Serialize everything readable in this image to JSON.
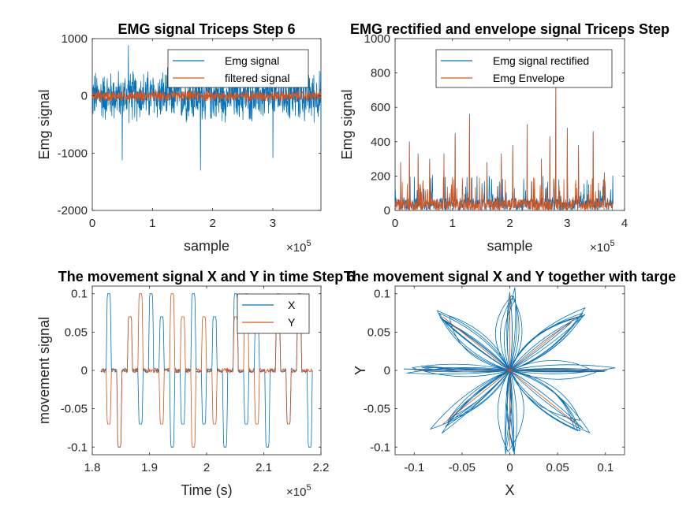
{
  "colors": {
    "blue": "#0072BD",
    "orange": "#D95319",
    "axis": "#262626"
  },
  "chart_data": [
    {
      "type": "line",
      "title": "EMG signal Triceps Step 6",
      "xlabel": "sample",
      "ylabel": "Emg signal",
      "x_exponent_label": "×10",
      "x_exponent": "5",
      "xlim": [
        0,
        380000
      ],
      "ylim": [
        -2000,
        1000
      ],
      "xticks": [
        0,
        1,
        2,
        3
      ],
      "yticks": [
        -2000,
        -1000,
        0,
        1000
      ],
      "legend_position": "top-right",
      "series": [
        {
          "name": "Emg signal",
          "color": "blue",
          "kind": "noise",
          "x_end": 380000,
          "amplitude": 400,
          "spikes": [
            [
              50000,
              -1120
            ],
            [
              60000,
              880
            ],
            [
              180000,
              -1300
            ],
            [
              300000,
              -1080
            ],
            [
              380000,
              -900
            ]
          ]
        },
        {
          "name": "filtered signal",
          "color": "orange",
          "kind": "noise",
          "x_end": 380000,
          "amplitude": 90,
          "spikes": []
        }
      ]
    },
    {
      "type": "line",
      "title": "EMG rectified and envelope signal Triceps Step",
      "xlabel": "sample",
      "ylabel": "Emg signal",
      "x_exponent_label": "×10",
      "x_exponent": "5",
      "xlim": [
        0,
        400000
      ],
      "ylim": [
        0,
        1000
      ],
      "xticks": [
        0,
        1,
        2,
        3,
        4
      ],
      "yticks": [
        0,
        200,
        400,
        600,
        800,
        1000
      ],
      "legend_position": "top-right",
      "series": [
        {
          "name": "Emg signal rectified",
          "color": "blue",
          "kind": "rectified",
          "x_end": 380000,
          "base": 60,
          "peaks": [
            [
              10000,
              280
            ],
            [
              25000,
              400
            ],
            [
              40000,
              330
            ],
            [
              60000,
              300
            ],
            [
              85000,
              330
            ],
            [
              105000,
              450
            ],
            [
              130000,
              560
            ],
            [
              160000,
              280
            ],
            [
              185000,
              330
            ],
            [
              205000,
              380
            ],
            [
              230000,
              500
            ],
            [
              255000,
              300
            ],
            [
              270000,
              430
            ],
            [
              280000,
              720
            ],
            [
              300000,
              480
            ],
            [
              320000,
              380
            ],
            [
              345000,
              460
            ],
            [
              365000,
              220
            ]
          ]
        },
        {
          "name": "Emg Envelope",
          "color": "orange",
          "kind": "rectified",
          "x_end": 380000,
          "base": 55,
          "peaks": [
            [
              10000,
              270
            ],
            [
              25000,
              390
            ],
            [
              40000,
              320
            ],
            [
              60000,
              290
            ],
            [
              85000,
              320
            ],
            [
              105000,
              440
            ],
            [
              130000,
              550
            ],
            [
              160000,
              270
            ],
            [
              185000,
              320
            ],
            [
              205000,
              370
            ],
            [
              230000,
              490
            ],
            [
              255000,
              290
            ],
            [
              270000,
              420
            ],
            [
              280000,
              710
            ],
            [
              300000,
              470
            ],
            [
              320000,
              370
            ],
            [
              345000,
              450
            ],
            [
              365000,
              210
            ]
          ]
        }
      ]
    },
    {
      "type": "line",
      "title": "The movement signal X and Y in time Step 6",
      "xlabel": "Time (s)",
      "ylabel": "movement signal",
      "x_exponent_label": "×10",
      "x_exponent": "5",
      "xlim": [
        180000,
        220000
      ],
      "ylim": [
        -0.11,
        0.11
      ],
      "xticks": [
        1.8,
        1.9,
        2,
        2.1,
        2.2
      ],
      "yticks": [
        -0.1,
        -0.05,
        0,
        0.05,
        0.1
      ],
      "legend_position": "top-right",
      "series": [
        {
          "name": "X",
          "color": "blue",
          "kind": "steps",
          "x_start": 181500,
          "x_end": 218500,
          "levels": [
            0,
            0.1,
            0,
            -0.1,
            0,
            0.07,
            0,
            -0.07,
            0,
            0.1,
            0,
            0.07,
            0,
            -0.1,
            0,
            -0.07,
            0,
            0.1,
            0,
            -0.07,
            0,
            0.07,
            0,
            -0.1,
            0,
            0.1,
            0,
            -0.07,
            0,
            0.07,
            0,
            -0.1,
            0,
            0.07,
            0,
            -0.07,
            0,
            0.1,
            0,
            -0.1
          ]
        },
        {
          "name": "Y",
          "color": "orange",
          "kind": "steps",
          "x_start": 181500,
          "x_end": 218500,
          "levels": [
            0,
            -0.07,
            0,
            -0.1,
            0,
            0.07,
            0,
            0.1,
            0,
            0,
            0,
            -0.07,
            0,
            0.1,
            0,
            0.07,
            0,
            -0.1,
            0,
            0.07,
            0,
            -0.07,
            0,
            0,
            0,
            0.07,
            0,
            0.1,
            0,
            -0.07,
            0,
            0,
            0,
            0.1,
            0,
            -0.07,
            0,
            0.07,
            0,
            0
          ]
        }
      ]
    },
    {
      "type": "line",
      "title": "The movement signal X and Y together with targe",
      "xlabel": "X",
      "ylabel": "Y",
      "xlim": [
        -0.12,
        0.12
      ],
      "ylim": [
        -0.11,
        0.11
      ],
      "xticks": [
        -0.1,
        -0.05,
        0,
        0.05,
        0.1
      ],
      "yticks": [
        -0.1,
        -0.05,
        0,
        0.05,
        0.1
      ],
      "series": [
        {
          "name": "",
          "color": "blue",
          "kind": "star",
          "targets": [
            [
              0.1,
              0
            ],
            [
              0.07,
              0.07
            ],
            [
              0,
              0.1
            ],
            [
              -0.07,
              0.07
            ],
            [
              -0.1,
              0
            ],
            [
              -0.07,
              -0.07
            ],
            [
              0,
              -0.1
            ],
            [
              0.07,
              -0.07
            ]
          ]
        },
        {
          "name": "",
          "color": "orange",
          "kind": "spokes",
          "targets": [
            [
              0.1,
              0
            ],
            [
              0.07,
              0.07
            ],
            [
              0,
              0.1
            ],
            [
              -0.07,
              0.07
            ],
            [
              -0.1,
              0
            ],
            [
              -0.07,
              -0.07
            ],
            [
              0,
              -0.1
            ],
            [
              0.07,
              -0.07
            ]
          ]
        }
      ]
    }
  ]
}
